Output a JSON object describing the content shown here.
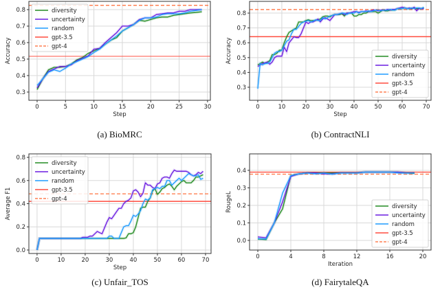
{
  "colors": {
    "diversity": "#228B22",
    "uncertainty": "#6A1BE0",
    "random": "#1E9BFF",
    "gpt-3.5": "#FF4B3E",
    "gpt-4": "#FF7F50"
  },
  "chart_data": [
    {
      "type": "line",
      "caption": "(a) BioMRC",
      "xlabel": "Step",
      "ylabel": "Accuracy",
      "xlim": [
        -1.45,
        30.5
      ],
      "ylim": [
        0.25,
        0.85
      ],
      "xticks": [
        0,
        5,
        10,
        15,
        20,
        25,
        30
      ],
      "yticks": [
        0.3,
        0.4,
        0.5,
        0.6,
        0.7,
        0.8
      ],
      "legend": "upper-left",
      "series": [
        {
          "name": "diversity",
          "values": [
            0.315,
            0.38,
            0.435,
            0.45,
            0.45,
            0.455,
            0.47,
            0.495,
            0.51,
            0.535,
            0.55,
            0.565,
            0.59,
            0.615,
            0.63,
            0.67,
            0.69,
            0.71,
            0.735,
            0.73,
            0.74,
            0.75,
            0.755,
            0.755,
            0.765,
            0.77,
            0.775,
            0.78,
            0.783,
            0.787
          ]
        },
        {
          "name": "uncertainty",
          "values": [
            0.325,
            0.38,
            0.425,
            0.44,
            0.455,
            0.455,
            0.465,
            0.49,
            0.505,
            0.52,
            0.56,
            0.565,
            0.6,
            0.63,
            0.66,
            0.7,
            0.7,
            0.71,
            0.74,
            0.75,
            0.75,
            0.77,
            0.775,
            0.78,
            0.78,
            0.79,
            0.79,
            0.8,
            0.8,
            0.8
          ]
        },
        {
          "name": "random",
          "values": [
            0.34,
            0.38,
            0.42,
            0.435,
            0.425,
            0.445,
            0.47,
            0.485,
            0.5,
            0.515,
            0.54,
            0.56,
            0.59,
            0.615,
            0.64,
            0.67,
            0.69,
            0.71,
            0.735,
            0.75,
            0.75,
            0.755,
            0.77,
            0.775,
            0.775,
            0.775,
            0.78,
            0.79,
            0.795,
            0.8
          ]
        }
      ],
      "baselines": [
        {
          "name": "gpt-3.5",
          "value": 0.517,
          "style": "solid"
        },
        {
          "name": "gpt-4",
          "value": 0.826,
          "style": "dashed"
        }
      ]
    },
    {
      "type": "line",
      "caption": "(b) ContractNLI",
      "xlabel": "Step",
      "ylabel": "Accuracy",
      "xlim": [
        -3.4,
        72
      ],
      "ylim": [
        0.212,
        0.879
      ],
      "xticks": [
        0,
        10,
        20,
        30,
        40,
        50,
        60,
        70
      ],
      "yticks": [
        0.3,
        0.4,
        0.5,
        0.6,
        0.7,
        0.8
      ],
      "legend": "lower-right",
      "series": [
        {
          "name": "diversity",
          "values": [
            0.45,
            0.46,
            0.47,
            0.46,
            0.47,
            0.48,
            0.52,
            0.52,
            0.53,
            0.55,
            0.55,
            0.6,
            0.64,
            0.67,
            0.68,
            0.69,
            0.7,
            0.74,
            0.74,
            0.74,
            0.75,
            0.755,
            0.75,
            0.75,
            0.75,
            0.755,
            0.76,
            0.775,
            0.78,
            0.78,
            0.775,
            0.785,
            0.79,
            0.79,
            0.79,
            0.795,
            0.78,
            0.8,
            0.8,
            0.8,
            0.78,
            0.78,
            0.79,
            0.79,
            0.8,
            0.8,
            0.81,
            0.81,
            0.81,
            0.81,
            0.8,
            0.81,
            0.82,
            0.815,
            0.815,
            0.82,
            0.82,
            0.82,
            0.83,
            0.83,
            0.83,
            0.835,
            0.83,
            0.83,
            0.83,
            0.835,
            0.83,
            0.83,
            0.83,
            0.835
          ]
        },
        {
          "name": "uncertainty",
          "values": [
            0.44,
            0.45,
            0.46,
            0.465,
            0.47,
            0.455,
            0.47,
            0.5,
            0.51,
            0.51,
            0.51,
            0.57,
            0.54,
            0.6,
            0.62,
            0.64,
            0.635,
            0.635,
            0.66,
            0.7,
            0.74,
            0.73,
            0.74,
            0.74,
            0.75,
            0.76,
            0.74,
            0.76,
            0.77,
            0.76,
            0.75,
            0.77,
            0.79,
            0.79,
            0.795,
            0.8,
            0.79,
            0.8,
            0.8,
            0.805,
            0.81,
            0.81,
            0.805,
            0.81,
            0.81,
            0.815,
            0.81,
            0.815,
            0.82,
            0.82,
            0.815,
            0.82,
            0.82,
            0.82,
            0.825,
            0.82,
            0.825,
            0.825,
            0.83,
            0.835,
            0.84,
            0.835,
            0.83,
            0.835,
            0.83,
            0.84,
            0.815,
            0.83,
            0.83,
            0.83
          ]
        },
        {
          "name": "random",
          "values": [
            0.29,
            0.46,
            0.45,
            0.46,
            0.46,
            0.47,
            0.5,
            0.53,
            0.54,
            0.54,
            0.55,
            0.58,
            0.61,
            0.62,
            0.66,
            0.69,
            0.69,
            0.71,
            0.73,
            0.74,
            0.745,
            0.75,
            0.74,
            0.745,
            0.755,
            0.75,
            0.75,
            0.77,
            0.76,
            0.77,
            0.78,
            0.785,
            0.79,
            0.79,
            0.795,
            0.8,
            0.8,
            0.79,
            0.8,
            0.8,
            0.8,
            0.81,
            0.8,
            0.81,
            0.81,
            0.81,
            0.815,
            0.81,
            0.815,
            0.82,
            0.82,
            0.815,
            0.82,
            0.82,
            0.82,
            0.825,
            0.82,
            0.82,
            0.83,
            0.83,
            0.83,
            0.835,
            0.83,
            0.83,
            0.835,
            0.83,
            0.835,
            0.835,
            0.83,
            0.84
          ]
        }
      ],
      "baselines": [
        {
          "name": "gpt-3.5",
          "value": 0.641,
          "style": "solid"
        },
        {
          "name": "gpt-4",
          "value": 0.824,
          "style": "dashed"
        }
      ]
    },
    {
      "type": "line",
      "caption": "(c) Unfair_TOS",
      "xlabel": "Step",
      "ylabel": "Average F1",
      "xlim": [
        -3.4,
        72.3
      ],
      "ylim": [
        -0.03,
        0.83
      ],
      "xticks": [
        0,
        10,
        20,
        30,
        40,
        50,
        60,
        70
      ],
      "yticks": [
        0.0,
        0.2,
        0.4,
        0.6,
        0.8
      ],
      "legend": "upper-left",
      "series": [
        {
          "name": "diversity",
          "values": [
            0,
            0.1,
            0.1,
            0.1,
            0.1,
            0.1,
            0.1,
            0.1,
            0.1,
            0.1,
            0.1,
            0.1,
            0.1,
            0.1,
            0.1,
            0.1,
            0.1,
            0.1,
            0.1,
            0.1,
            0.1,
            0.1,
            0.1,
            0.1,
            0.1,
            0.1,
            0.1,
            0.1,
            0.1,
            0.1,
            0.1,
            0.1,
            0.1,
            0.1,
            0.1,
            0.1,
            0.1,
            0.105,
            0.14,
            0.14,
            0.15,
            0.2,
            0.28,
            0.36,
            0.37,
            0.37,
            0.42,
            0.45,
            0.51,
            0.53,
            0.48,
            0.5,
            0.53,
            0.54,
            0.56,
            0.57,
            0.55,
            0.52,
            0.55,
            0.57,
            0.59,
            0.6,
            0.58,
            0.58,
            0.58,
            0.6,
            0.63,
            0.63,
            0.64,
            0.65
          ]
        },
        {
          "name": "uncertainty",
          "values": [
            0,
            0.1,
            0.1,
            0.1,
            0.1,
            0.1,
            0.1,
            0.1,
            0.1,
            0.1,
            0.1,
            0.1,
            0.1,
            0.1,
            0.1,
            0.1,
            0.1,
            0.1,
            0.1,
            0.11,
            0.11,
            0.11,
            0.12,
            0.12,
            0.14,
            0.16,
            0.15,
            0.14,
            0.19,
            0.24,
            0.28,
            0.27,
            0.3,
            0.33,
            0.36,
            0.36,
            0.4,
            0.42,
            0.43,
            0.45,
            0.51,
            0.52,
            0.5,
            0.46,
            0.49,
            0.58,
            0.56,
            0.56,
            0.54,
            0.53,
            0.57,
            0.58,
            0.62,
            0.63,
            0.63,
            0.62,
            0.66,
            0.69,
            0.68,
            0.68,
            0.68,
            0.68,
            0.68,
            0.67,
            0.65,
            0.64,
            0.65,
            0.67,
            0.66,
            0.68
          ]
        },
        {
          "name": "random",
          "values": [
            0,
            0.1,
            0.1,
            0.1,
            0.1,
            0.1,
            0.1,
            0.1,
            0.1,
            0.1,
            0.1,
            0.1,
            0.1,
            0.1,
            0.1,
            0.1,
            0.1,
            0.1,
            0.1,
            0.1,
            0.1,
            0.1,
            0.1,
            0.1,
            0.1,
            0.1,
            0.1,
            0.1,
            0.1,
            0.1,
            0.12,
            0.12,
            0.1,
            0.1,
            0.1,
            0.15,
            0.2,
            0.21,
            0.21,
            0.25,
            0.3,
            0.29,
            0.31,
            0.34,
            0.4,
            0.44,
            0.43,
            0.45,
            0.52,
            0.53,
            0.54,
            0.53,
            0.55,
            0.55,
            0.6,
            0.6,
            0.56,
            0.58,
            0.6,
            0.62,
            0.6,
            0.62,
            0.64,
            0.66,
            0.65,
            0.64,
            0.64,
            0.65,
            0.61,
            0.62
          ]
        }
      ],
      "baselines": [
        {
          "name": "gpt-3.5",
          "value": 0.42,
          "style": "solid"
        },
        {
          "name": "gpt-4",
          "value": 0.485,
          "style": "dashed"
        }
      ]
    },
    {
      "type": "line",
      "caption": "(d) FairytaleQA",
      "xlabel": "Iteration",
      "ylabel": "RougeL",
      "xlim": [
        -1,
        21
      ],
      "ylim": [
        -0.055,
        0.494
      ],
      "xticks": [
        0,
        4,
        8,
        12,
        16,
        20
      ],
      "yticks": [
        0.0,
        0.1,
        0.2,
        0.3,
        0.4
      ],
      "legend": "lower-right",
      "series": [
        {
          "name": "diversity",
          "values": [
            0.008,
            0.005,
            0.1,
            0.18,
            0.37,
            0.38,
            0.385,
            0.385,
            0.385,
            0.385,
            0.385,
            0.385,
            0.385,
            0.39,
            0.39,
            0.39,
            0.39,
            0.39,
            0.385,
            0.383
          ]
        },
        {
          "name": "uncertainty",
          "values": [
            0.02,
            0.015,
            0.1,
            0.22,
            0.365,
            0.38,
            0.385,
            0.385,
            0.38,
            0.38,
            0.385,
            0.385,
            0.385,
            0.39,
            0.39,
            0.39,
            0.39,
            0.39,
            0.385,
            0.385
          ]
        },
        {
          "name": "random",
          "values": [
            0.01,
            0.008,
            0.1,
            0.27,
            0.37,
            0.38,
            0.385,
            0.38,
            0.385,
            0.378,
            0.385,
            0.385,
            0.385,
            0.39,
            0.39,
            0.39,
            0.39,
            0.385,
            0.385,
            0.385
          ]
        }
      ],
      "baselines": [
        {
          "name": "gpt-3.5",
          "value": 0.39,
          "style": "solid"
        },
        {
          "name": "gpt-4",
          "value": 0.378,
          "style": "dashed"
        }
      ]
    }
  ]
}
